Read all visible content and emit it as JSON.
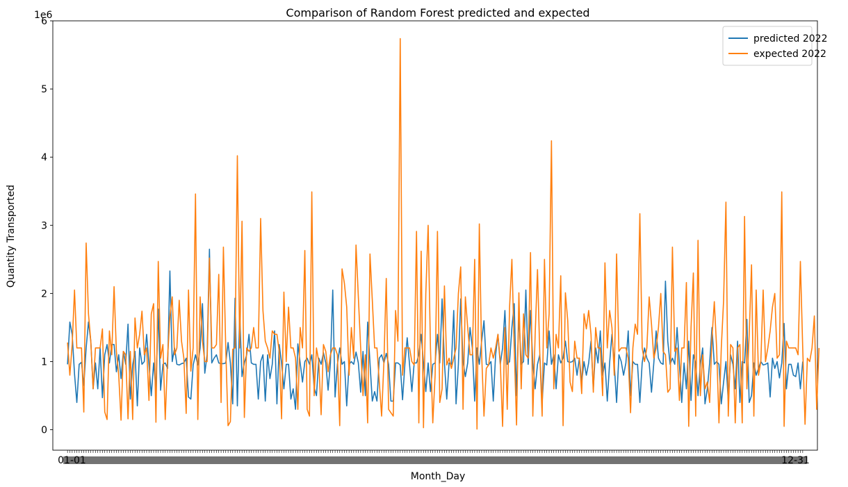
{
  "chart_data": {
    "type": "line",
    "title": "Comparison of Random Forest predicted and expected",
    "xlabel": "Month_Day",
    "ylabel": "Quantity Transported",
    "y_offset_label": "1e6",
    "y_ticks": [
      0,
      1,
      2,
      3,
      4,
      5,
      6
    ],
    "y_tick_scale": 1000000,
    "ylim": [
      -300000,
      6000000
    ],
    "x_tick_first_label": "01-01",
    "x_tick_last_label": "12-31",
    "x_ticks_overlapping": true,
    "grid": false,
    "legend_position": "upper right",
    "series": [
      {
        "name": "predicted 2022",
        "color": "#1f77b4",
        "values": [
          960000,
          1580000,
          1400000,
          820000,
          400000,
          960000,
          990000,
          650000,
          1200000,
          1580000,
          1300000,
          600000,
          980000,
          600000,
          1200000,
          470000,
          1100000,
          1250000,
          980000,
          1250000,
          1250000,
          850000,
          1100000,
          750000,
          1150000,
          960000,
          1550000,
          450000,
          950000,
          1150000,
          350000,
          1200000,
          960000,
          1000000,
          1400000,
          960000,
          500000,
          980000,
          600000,
          1770000,
          580000,
          960000,
          980000,
          900000,
          2330000,
          1000000,
          1200000,
          960000,
          950000,
          970000,
          980000,
          1050000,
          480000,
          450000,
          950000,
          1100000,
          950000,
          1200000,
          1850000,
          830000,
          1100000,
          2650000,
          980000,
          1050000,
          1100000,
          980000,
          970000,
          970000,
          980000,
          1280000,
          980000,
          380000,
          1930000,
          350000,
          1700000,
          780000,
          980000,
          1100000,
          1400000,
          980000,
          960000,
          960000,
          450000,
          1000000,
          1100000,
          420000,
          1100000,
          750000,
          960000,
          1450000,
          380000,
          1250000,
          980000,
          600000,
          960000,
          960000,
          450000,
          600000,
          300000,
          1260000,
          980000,
          700000,
          1000000,
          1050000,
          960000,
          1100000,
          620000,
          500000,
          1050000,
          960000,
          1130000,
          980000,
          580000,
          980000,
          2050000,
          480000,
          960000,
          1200000,
          960000,
          1000000,
          350000,
          960000,
          1000000,
          960000,
          1140000,
          980000,
          550000,
          1150000,
          500000,
          1580000,
          980000,
          420000,
          560000,
          420000,
          1050000,
          1100000,
          980000,
          1120000,
          960000,
          420000,
          420000,
          980000,
          980000,
          950000,
          440000,
          960000,
          1350000,
          960000,
          560000,
          980000,
          980000,
          1100000,
          1400000,
          980000,
          560000,
          980000,
          560000,
          960000,
          980000,
          1400000,
          980000,
          1920000,
          980000,
          450000,
          980000,
          960000,
          1750000,
          380000,
          960000,
          1920000,
          1000000,
          780000,
          980000,
          1500000,
          1200000,
          420000,
          1200000,
          960000,
          1300000,
          1600000,
          960000,
          950000,
          1000000,
          420000,
          1100000,
          1400000,
          960000,
          1200000,
          1750000,
          960000,
          1000000,
          1500000,
          1850000,
          500000,
          1700000,
          960000,
          1000000,
          2050000,
          960000,
          1750000,
          980000,
          600000,
          960000,
          1100000,
          400000,
          980000,
          950000,
          1450000,
          960000,
          1100000,
          600000,
          1100000,
          980000,
          1050000,
          1300000,
          1000000,
          990000,
          1000000,
          1050000,
          800000,
          1050000,
          700000,
          1000000,
          800000,
          980000,
          1300000,
          600000,
          1200000,
          980000,
          1450000,
          800000,
          980000,
          420000,
          980000,
          1400000,
          960000,
          400000,
          1100000,
          1000000,
          800000,
          980000,
          1450000,
          500000,
          1000000,
          960000,
          960000,
          400000,
          980000,
          1200000,
          1050000,
          980000,
          550000,
          980000,
          1450000,
          1050000,
          980000,
          960000,
          2180000,
          1300000,
          960000,
          1050000,
          960000,
          1500000,
          960000,
          400000,
          980000,
          600000,
          1300000,
          430000,
          1100000,
          980000,
          500000,
          960000,
          1200000,
          380000,
          600000,
          980000,
          1500000,
          960000,
          1000000,
          960000,
          380000,
          700000,
          1000000,
          420000,
          1100000,
          960000,
          600000,
          1300000,
          400000,
          1000000,
          980000,
          1620000,
          400000,
          500000,
          980000,
          800000,
          900000,
          1000000,
          950000,
          960000,
          980000,
          480000,
          1050000,
          900000,
          1000000,
          760000,
          980000,
          1560000,
          600000,
          960000,
          960000,
          800000,
          780000,
          980000,
          600000,
          1000000
        ]
      },
      {
        "name": "expected 2022",
        "color": "#ff7f0e",
        "values": [
          1280000,
          800000,
          1250000,
          2050000,
          1200000,
          1200000,
          1200000,
          260000,
          2740000,
          1700000,
          1300000,
          600000,
          1200000,
          1200000,
          1200000,
          1480000,
          260000,
          150000,
          1450000,
          1100000,
          2100000,
          1150000,
          800000,
          140000,
          1150000,
          1100000,
          160000,
          1150000,
          150000,
          1640000,
          1200000,
          1400000,
          1740000,
          1100000,
          1200000,
          430000,
          1700000,
          1850000,
          110000,
          2470000,
          1050000,
          1250000,
          150000,
          1050000,
          1660000,
          1950000,
          1100000,
          1200000,
          1900000,
          1300000,
          1050000,
          240000,
          2050000,
          860000,
          1200000,
          3460000,
          150000,
          1950000,
          1300000,
          1000000,
          1000000,
          2520000,
          1200000,
          1200000,
          1250000,
          2280000,
          400000,
          2680000,
          1200000,
          60000,
          120000,
          1180000,
          1200000,
          4020000,
          1200000,
          3060000,
          180000,
          1200000,
          1150000,
          1200000,
          1500000,
          1200000,
          1200000,
          3100000,
          1750000,
          1300000,
          1200000,
          1050000,
          1450000,
          1400000,
          1400000,
          1150000,
          160000,
          2020000,
          1000000,
          1800000,
          1200000,
          1200000,
          1050000,
          300000,
          1500000,
          1200000,
          2630000,
          300000,
          200000,
          3490000,
          500000,
          1200000,
          1000000,
          220000,
          1250000,
          1150000,
          850000,
          1100000,
          1200000,
          1200000,
          1100000,
          60000,
          2360000,
          2150000,
          1800000,
          800000,
          1500000,
          1050000,
          2710000,
          1950000,
          1200000,
          500000,
          1100000,
          100000,
          2580000,
          1900000,
          1200000,
          1200000,
          700000,
          200000,
          1000000,
          2220000,
          300000,
          250000,
          200000,
          1750000,
          1300000,
          5740000,
          800000,
          1200000,
          1200000,
          1200000,
          1000000,
          950000,
          2910000,
          100000,
          2620000,
          30000,
          2000000,
          3000000,
          1200000,
          100000,
          800000,
          2910000,
          400000,
          600000,
          2110000,
          950000,
          1050000,
          900000,
          1050000,
          1200000,
          2000000,
          2390000,
          300000,
          1950000,
          1500000,
          1100000,
          1100000,
          2500000,
          10000,
          3020000,
          1100000,
          200000,
          900000,
          950000,
          1200000,
          1050000,
          1200000,
          1400000,
          1000000,
          50000,
          1500000,
          300000,
          1800000,
          2500000,
          1200000,
          70000,
          2010000,
          600000,
          1700000,
          1100000,
          1050000,
          2600000,
          200000,
          1400000,
          2350000,
          1100000,
          200000,
          2500000,
          1200000,
          1700000,
          4240000,
          600000,
          1400000,
          1200000,
          2260000,
          60000,
          2010000,
          1600000,
          700000,
          560000,
          1300000,
          1050000,
          1050000,
          530000,
          1700000,
          1480000,
          1750000,
          1400000,
          550000,
          1500000,
          1200000,
          1200000,
          500000,
          2450000,
          1200000,
          1750000,
          1500000,
          800000,
          2580000,
          1150000,
          1200000,
          1200000,
          1200000,
          1050000,
          250000,
          1200000,
          1550000,
          1400000,
          3170000,
          1200000,
          1000000,
          1200000,
          1950000,
          1550000,
          1050000,
          1200000,
          1500000,
          2000000,
          1150000,
          1100000,
          550000,
          600000,
          2680000,
          1150000,
          1200000,
          430000,
          1200000,
          1200000,
          2160000,
          50000,
          1500000,
          2300000,
          200000,
          2780000,
          500000,
          1100000,
          600000,
          700000,
          400000,
          1350000,
          1880000,
          1200000,
          100000,
          1200000,
          1900000,
          3340000,
          200000,
          1250000,
          1200000,
          100000,
          1200000,
          1250000,
          100000,
          3130000,
          600000,
          1400000,
          2420000,
          200000,
          2050000,
          800000,
          1000000,
          2050000,
          1000000,
          1200000,
          1450000,
          1800000,
          2000000,
          1050000,
          1100000,
          3490000,
          50000,
          1300000,
          1200000,
          1200000,
          1200000,
          1200000,
          1100000,
          2470000,
          1200000,
          80000,
          1050000,
          1000000,
          1200000,
          1670000,
          300000,
          1200000
        ]
      }
    ]
  }
}
